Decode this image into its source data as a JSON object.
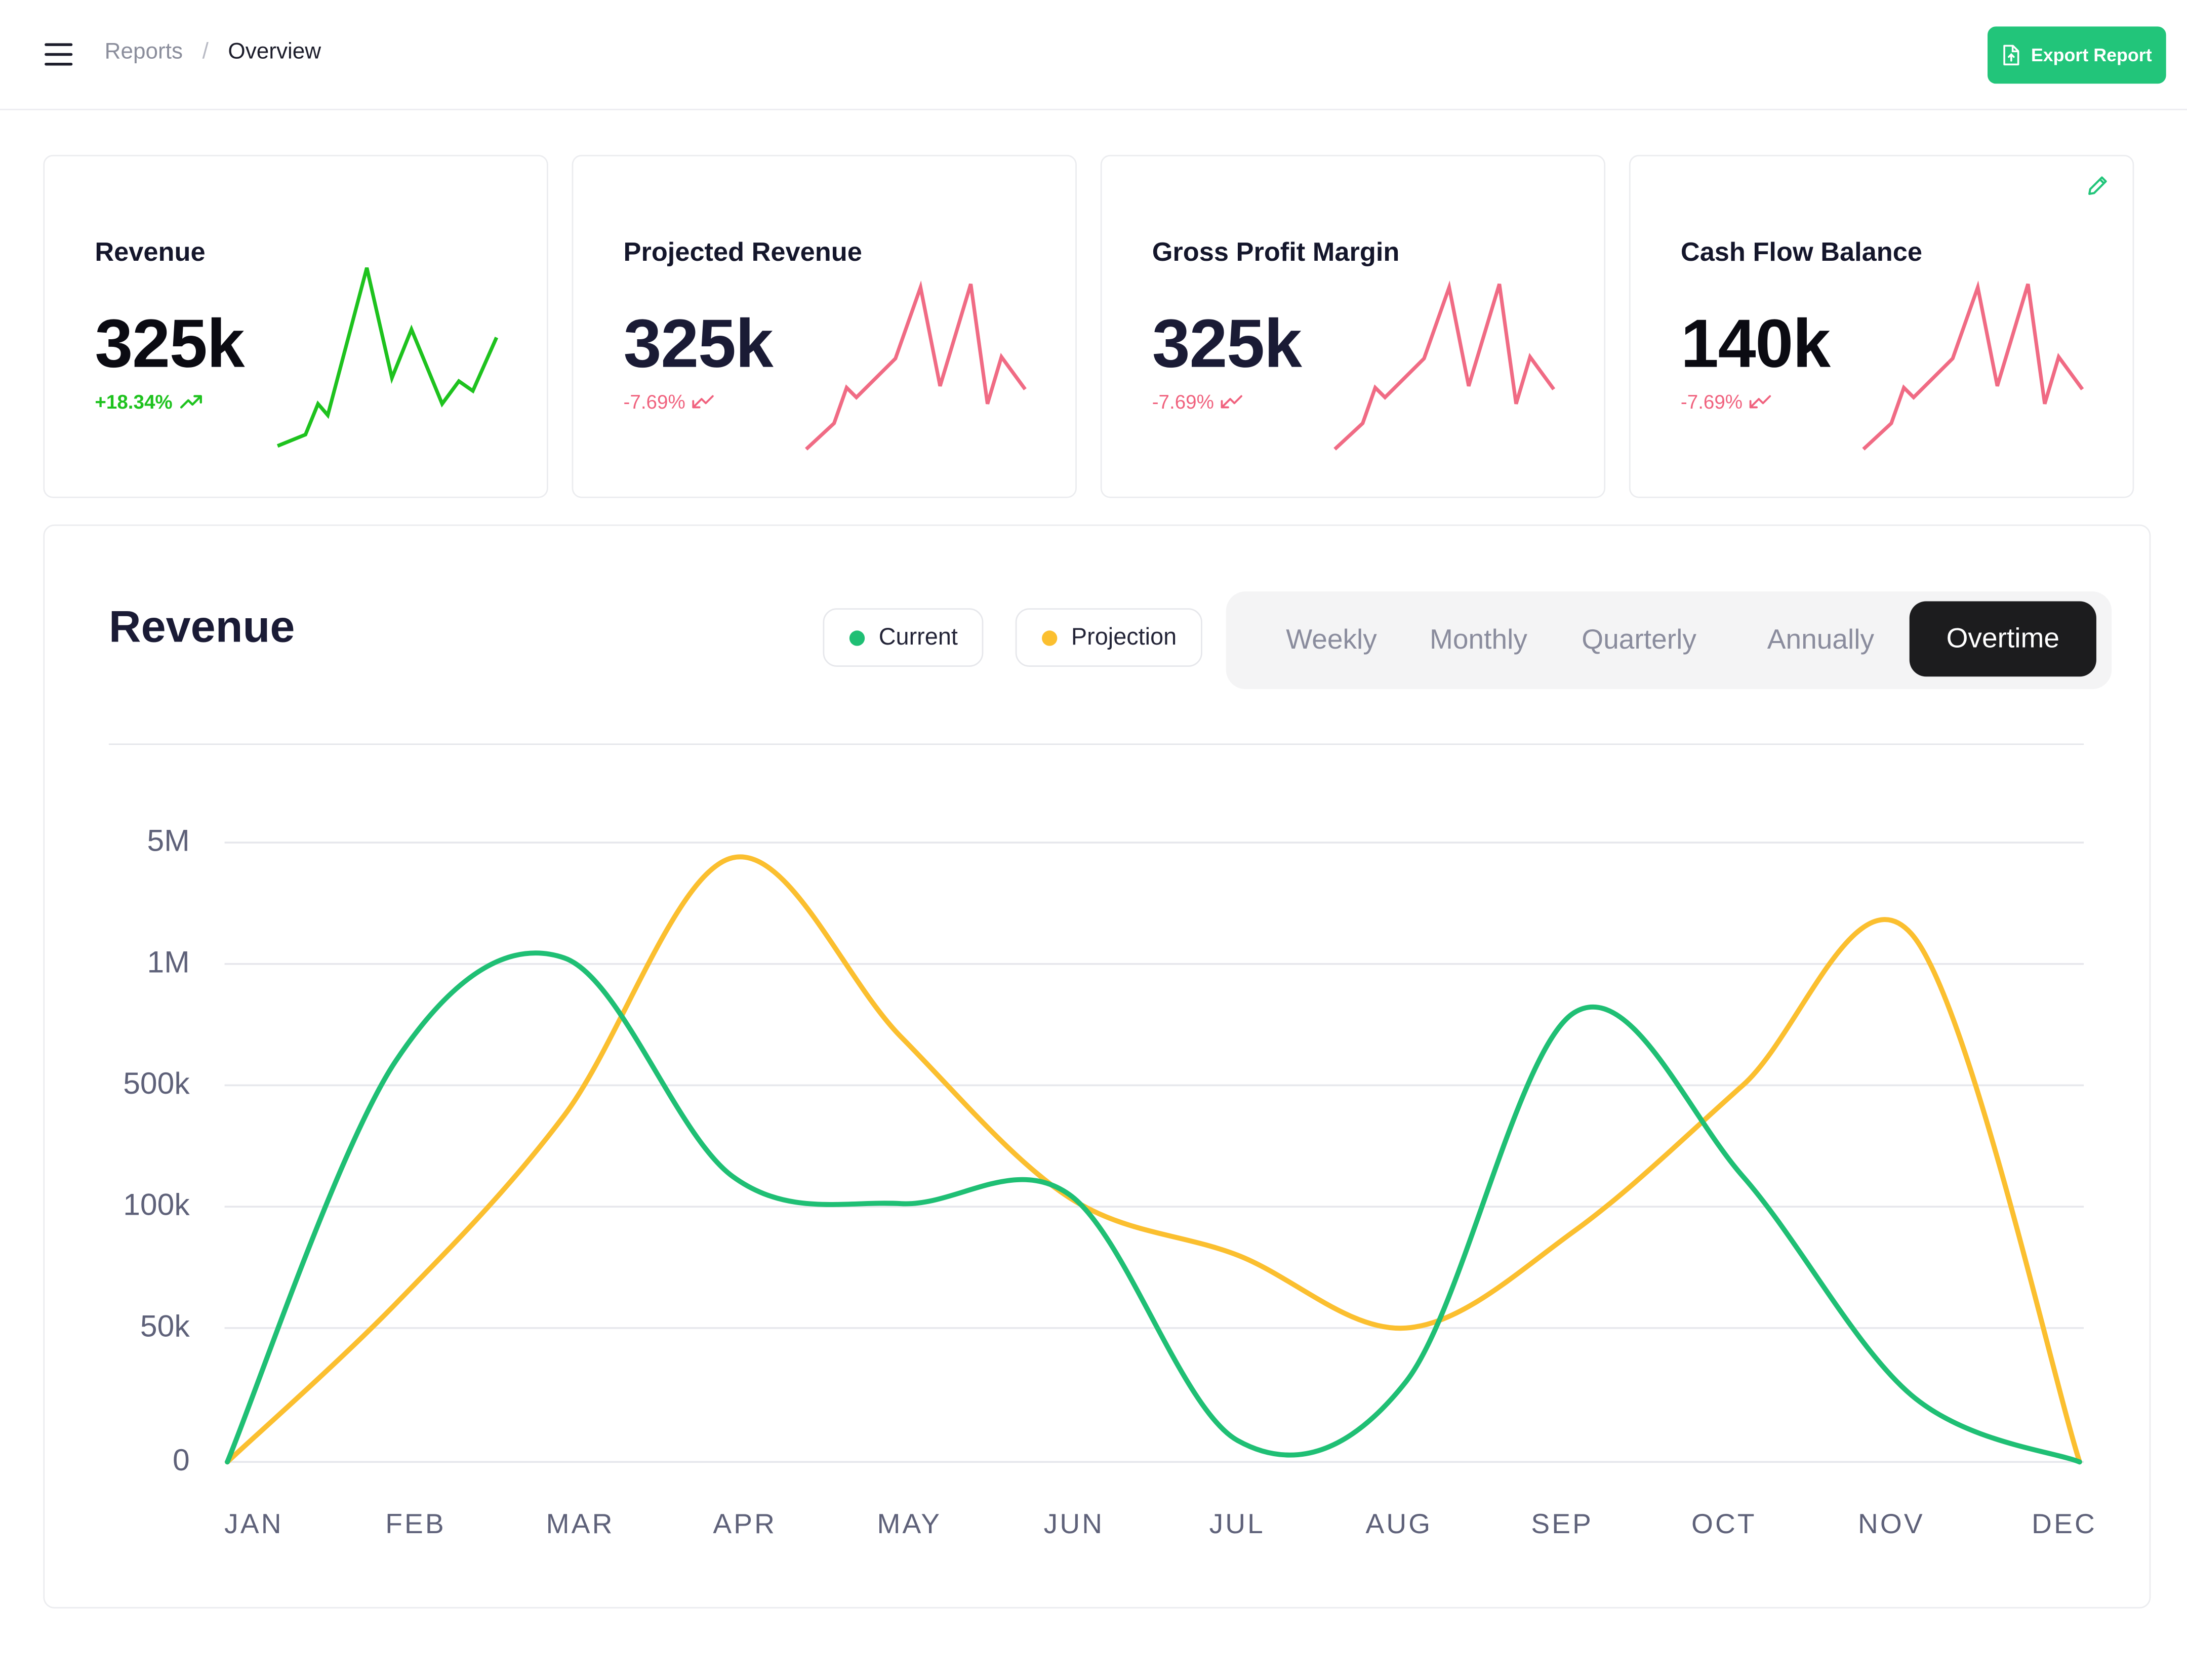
{
  "header": {
    "menu_icon": "hamburger-menu-icon",
    "breadcrumb": {
      "parent": "Reports",
      "separator": "/",
      "current": "Overview"
    },
    "export_button": {
      "label": "Export Report",
      "icon": "file-export-icon",
      "color": "#22c57a"
    }
  },
  "kpis": [
    {
      "title": "Revenue",
      "value": "325k",
      "change": "+18.34%",
      "trend": "up",
      "color": "#1ec21e",
      "sparkline": [
        2,
        9,
        28,
        21,
        112,
        44,
        74,
        28,
        42,
        36,
        69
      ]
    },
    {
      "title": "Projected Revenue",
      "value": "325k",
      "change": "-7.69%",
      "trend": "down",
      "color": "#f06b84",
      "sparkline": [
        0,
        16,
        38,
        32,
        56,
        100,
        39,
        102,
        28,
        57,
        37
      ]
    },
    {
      "title": "Gross Profit Margin",
      "value": "325k",
      "change": "-7.69%",
      "trend": "down",
      "color": "#f06b84",
      "sparkline": [
        0,
        16,
        38,
        32,
        56,
        100,
        39,
        102,
        28,
        57,
        37
      ]
    },
    {
      "title": "Cash Flow Balance",
      "value": "140k",
      "change": "-7.69%",
      "trend": "down",
      "color": "#f06b84",
      "edit_icon": "pencil-edit-icon",
      "sparkline": [
        0,
        16,
        38,
        32,
        56,
        100,
        39,
        102,
        28,
        57,
        37
      ]
    }
  ],
  "revenue_panel": {
    "title": "Revenue",
    "legend": [
      {
        "label": "Current",
        "color": "#1fbf74"
      },
      {
        "label": "Projection",
        "color": "#fbbf2f"
      }
    ],
    "periods": [
      "Weekly",
      "Monthly",
      "Quarterly",
      "Annually",
      "Overtime"
    ],
    "active_period": "Overtime"
  },
  "chart_data": {
    "type": "line",
    "title": "Revenue",
    "x": [
      "JAN",
      "FEB",
      "MAR",
      "APR",
      "MAY",
      "JUN",
      "JUL",
      "AUG",
      "SEP",
      "OCT",
      "NOV",
      "DEC"
    ],
    "y_ticks": [
      "0",
      "50k",
      "100k",
      "500k",
      "1M",
      "5M"
    ],
    "y_scale": "categorical-nonlinear",
    "grid": "horizontal",
    "series": [
      {
        "name": "Current",
        "color": "#1fbf74",
        "values": [
          "0",
          "600k",
          "1.2M",
          "200k",
          "110k",
          "140k",
          "8k",
          "30k",
          "800k",
          "200k",
          "25k",
          "0"
        ]
      },
      {
        "name": "Projection",
        "color": "#fbbf2f",
        "values": [
          "0",
          "60k",
          "400k",
          "4.5M",
          "700k",
          "130k",
          "80k",
          "50k",
          "90k",
          "500k",
          "2M",
          "0"
        ]
      }
    ]
  }
}
